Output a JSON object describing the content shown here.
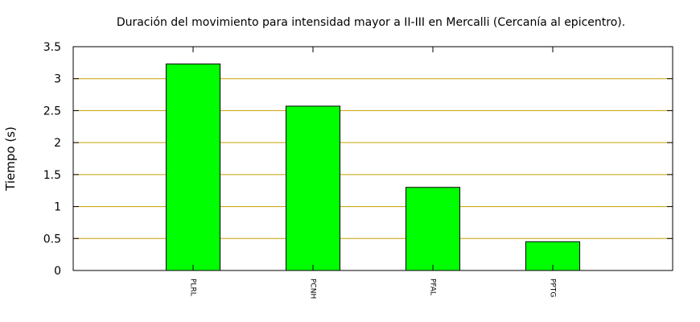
{
  "chart_data": {
    "type": "bar",
    "title": "Duración del movimiento para intensidad mayor a II-III en Mercalli (Cercanía al epicentro).",
    "xlabel": "",
    "ylabel": "Tiempo (s)",
    "categories": [
      "PLRL",
      "PCNH",
      "PFAL",
      "PPTG"
    ],
    "values": [
      3.23,
      2.57,
      1.3,
      0.45
    ],
    "ylim": [
      0,
      3.5
    ],
    "yticks": [
      "0",
      "0.5",
      "1",
      "1.5",
      "2",
      "2.5",
      "3",
      "3.5"
    ],
    "grid": true,
    "grid_color": "#c8a000",
    "bar_color": "#00ff00",
    "bar_edge_color": "#000000"
  }
}
